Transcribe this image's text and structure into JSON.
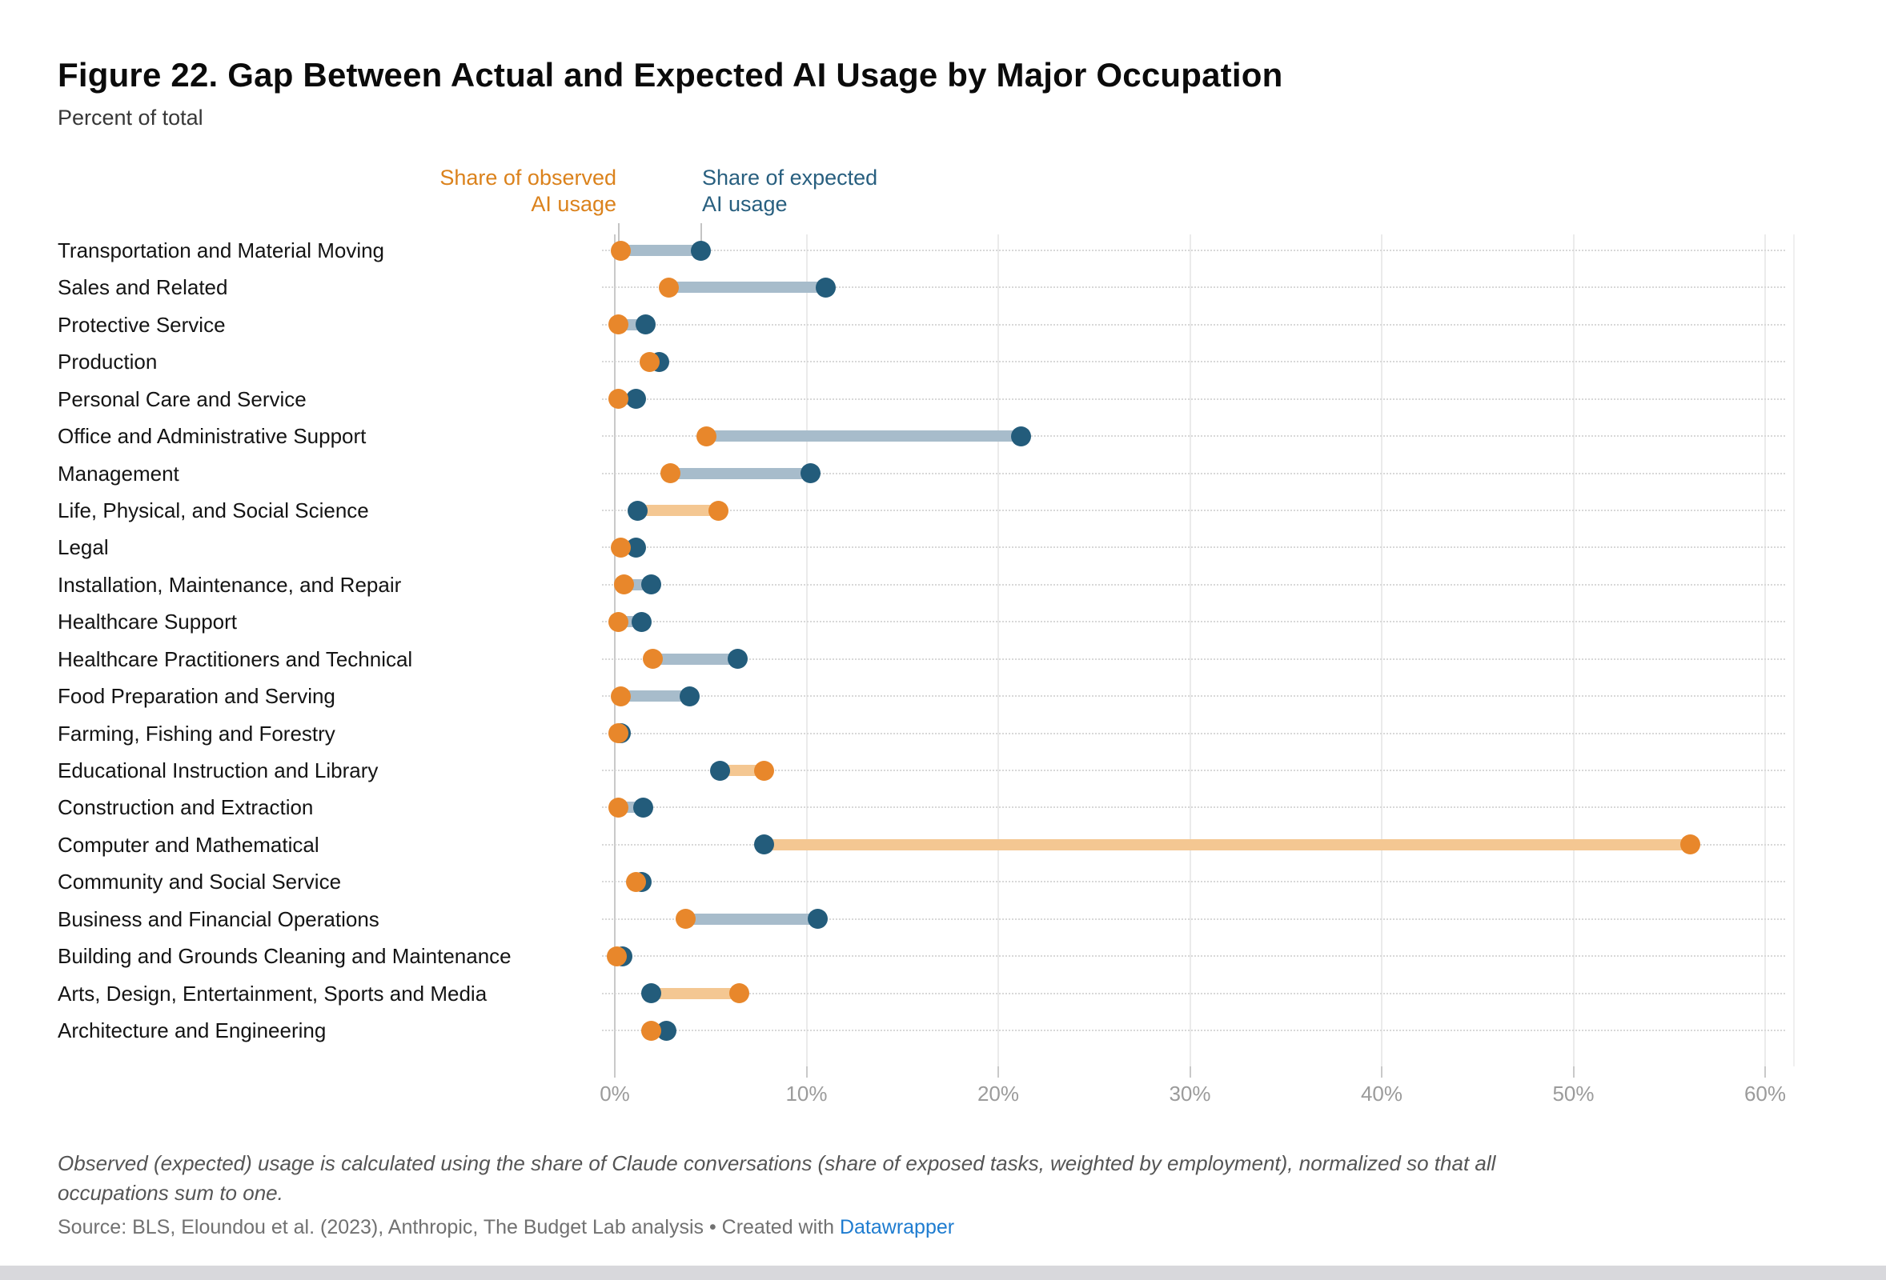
{
  "title": "Figure 22. Gap Between Actual and Expected AI Usage by Major Occupation",
  "subtitle": "Percent of total",
  "legend": {
    "observed": {
      "line1": "Share of observed",
      "line2": "AI usage"
    },
    "expected": {
      "line1": "Share of expected",
      "line2": "AI usage"
    }
  },
  "chart_data": {
    "type": "dumbbell",
    "orientation": "horizontal",
    "categories": [
      "Transportation and Material Moving",
      "Sales and Related",
      "Protective Service",
      "Production",
      "Personal Care and Service",
      "Office and Administrative Support",
      "Management",
      "Life, Physical, and Social Science",
      "Legal",
      "Installation, Maintenance, and Repair",
      "Healthcare Support",
      "Healthcare Practitioners and Technical",
      "Food Preparation and Serving",
      "Farming, Fishing and Forestry",
      "Educational Instruction and Library",
      "Construction and Extraction",
      "Computer and Mathematical",
      "Community and Social Service",
      "Business and Financial Operations",
      "Building and Grounds Cleaning and Maintenance",
      "Arts, Design, Entertainment, Sports and Media",
      "Architecture and Engineering"
    ],
    "series": [
      {
        "name": "Share of observed AI usage",
        "key": "observed",
        "unit": "%",
        "values": [
          0.3,
          2.8,
          0.2,
          1.8,
          0.2,
          4.8,
          2.9,
          5.4,
          0.3,
          0.5,
          0.2,
          2.0,
          0.3,
          0.2,
          7.8,
          0.2,
          56.1,
          1.1,
          3.7,
          0.1,
          6.5,
          1.9
        ]
      },
      {
        "name": "Share of expected AI usage",
        "key": "expected",
        "unit": "%",
        "values": [
          4.5,
          11.0,
          1.6,
          2.3,
          1.1,
          21.2,
          10.2,
          1.2,
          1.1,
          1.9,
          1.4,
          6.4,
          3.9,
          0.3,
          5.5,
          1.5,
          7.8,
          1.4,
          10.6,
          0.4,
          1.9,
          2.7
        ]
      }
    ],
    "x_axis": {
      "ticks": [
        "0%",
        "10%",
        "20%",
        "30%",
        "40%",
        "50%",
        "60%"
      ],
      "tick_values": [
        0,
        10,
        20,
        30,
        40,
        50,
        60
      ],
      "min": 0,
      "max": 62
    },
    "grid": {
      "vertical": "solid light",
      "horizontal": "dotted per row"
    },
    "legend_position": "top-anchored to first row dots",
    "colors": {
      "observed_dot": "#e8872b",
      "expected_dot": "#235c7b",
      "observed_bar": "#f4c792",
      "expected_bar": "#a7bccb",
      "observed_text": "#db821c",
      "expected_text": "#285f7f"
    }
  },
  "footnote": {
    "line1": "Observed (expected) usage is calculated using the share of Claude conversations (share of exposed tasks, weighted by employment), normalized so that all",
    "line2": "occupations sum to one."
  },
  "source": {
    "text": "Source: BLS, Eloundou et al. (2023), Anthropic, The Budget Lab analysis • Created with ",
    "link": "Datawrapper"
  }
}
